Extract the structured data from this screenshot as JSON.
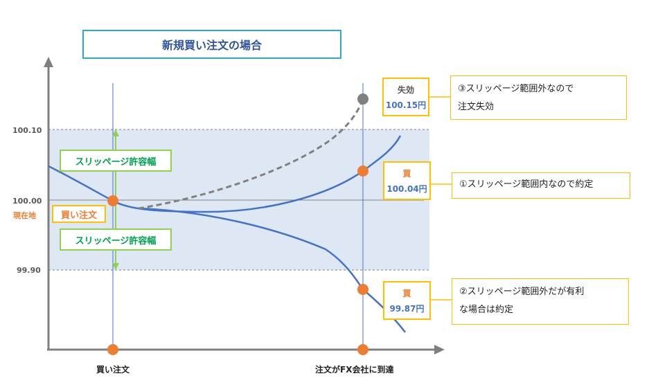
{
  "title": "新規買い注文の場合",
  "y_axis": {
    "ticks": [
      "100.10",
      "100.00",
      "99.90"
    ],
    "current_label": "現在地"
  },
  "x_axis": {
    "order_label": "買い注文",
    "arrival_label": "注文がFX会社に到達"
  },
  "band": {
    "upper_label": "スリッページ許容幅",
    "lower_label": "スリッページ許容幅"
  },
  "order_marker_label": "買い注文",
  "outcomes": [
    {
      "status": "失効",
      "price": "100.15円",
      "note_lines": [
        "③スリッページ範囲外なので",
        "注文失効"
      ]
    },
    {
      "status": "買",
      "price": "100.04円",
      "note_lines": [
        "①スリッページ範囲内なので約定"
      ]
    },
    {
      "status": "買",
      "price": "99.87円",
      "note_lines": [
        "②スリッページ範囲外だが有利",
        "な場合は約定"
      ]
    }
  ],
  "colors": {
    "band_fill": "#dee8f4",
    "price_line": "#4472c4",
    "expired_line": "#808080",
    "marker": "#ed7d31",
    "green": "#92d050",
    "note_border": "#ffc000"
  }
}
